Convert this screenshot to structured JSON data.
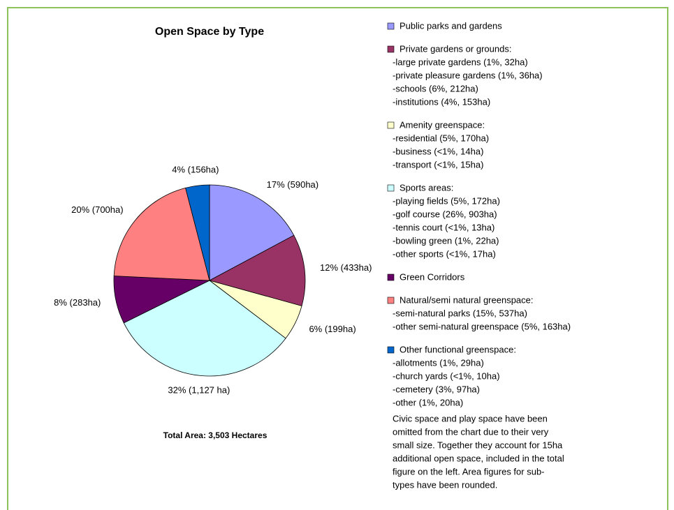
{
  "chart_data": {
    "type": "pie",
    "title": "Open Space by Type",
    "annotation": "Total Area: 3,503 Hectares",
    "categories": [
      "Public parks and gardens",
      "Private gardens or grounds:",
      "Amenity greenspace:",
      "Sports areas:",
      "Green Corridors",
      "Natural/semi natural greenspace:",
      "Other functional greenspace:"
    ],
    "colors": [
      "#9999ff",
      "#993366",
      "#ffffcc",
      "#ccffff",
      "#660066",
      "#ff8080",
      "#0066cc"
    ],
    "values": [
      17,
      12,
      6,
      32,
      8,
      20,
      4
    ],
    "value_labels": [
      "17% (590ha)",
      "12% (433ha)",
      "6% (199ha)",
      "32% (1,127 ha)",
      "8% (283ha)",
      "20% (700ha)",
      "4% (156ha)"
    ],
    "legend_details": [
      [],
      [
        "-large private gardens (1%, 32ha)",
        "-private pleasure gardens (1%, 36ha)",
        "-schools (6%, 212ha)",
        "-institutions (4%, 153ha)"
      ],
      [
        "-residential (5%, 170ha)",
        "-business (<1%, 14ha)",
        "-transport (<1%, 15ha)"
      ],
      [
        "-playing fields (5%, 172ha)",
        "-golf course (26%, 903ha)",
        "-tennis court (<1%, 13ha)",
        "-bowling green (1%, 22ha)",
        "-other sports (<1%, 17ha)"
      ],
      [],
      [
        "-semi-natural parks (15%, 537ha)",
        "-other semi-natural greenspace (5%, 163ha)"
      ],
      [
        "-allotments (1%, 29ha)",
        "-church yards (<1%, 10ha)",
        "-cemetery (3%, 97ha)",
        "-other (1%, 20ha)"
      ]
    ],
    "note_lines": [
      "Civic space and play space have been",
      "omitted from the chart due to their very",
      "small size. Together they account for 15ha",
      "additional open space, included in the total",
      "figure on the left.  Area figures for sub-",
      "types have been rounded."
    ]
  }
}
